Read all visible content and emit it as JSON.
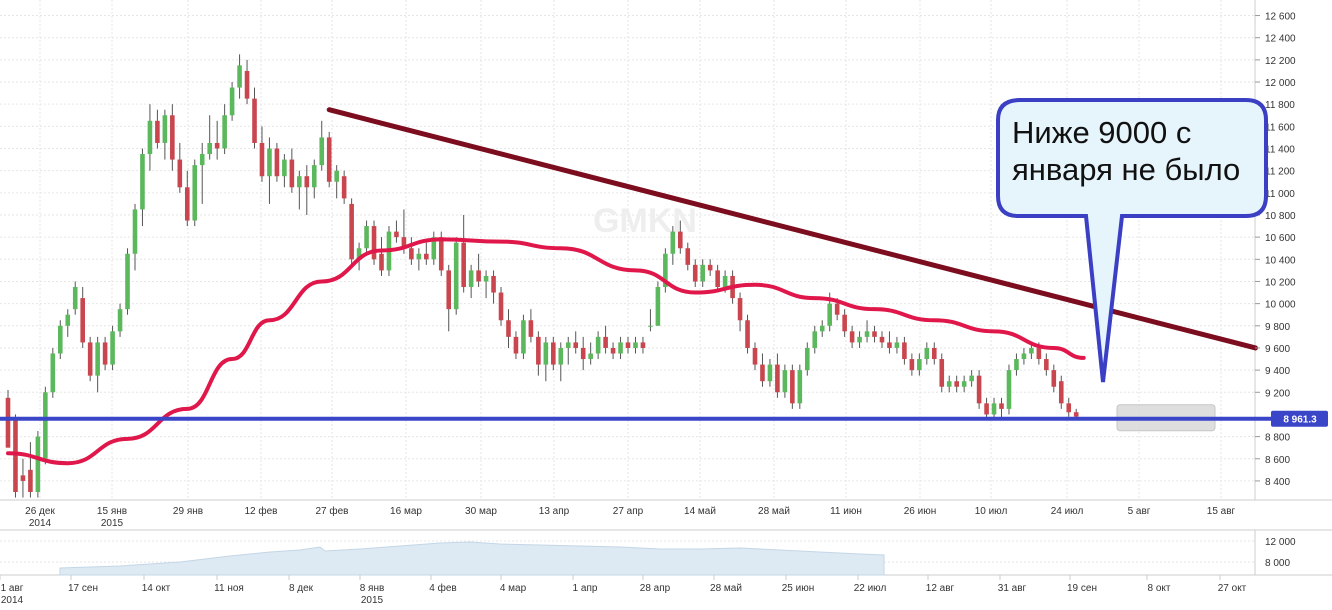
{
  "chart_data": {
    "type": "candlestick",
    "watermark": "GMKN",
    "price_axis": {
      "ticks": [
        "12 600",
        "12 400",
        "12 200",
        "12 000",
        "11 800",
        "11 600",
        "11 400",
        "11 200",
        "11 000",
        "10 800",
        "10 600",
        "10 400",
        "10 200",
        "10 000",
        "9 800",
        "9 600",
        "9 400",
        "9 200",
        "8 800",
        "8 600",
        "8 400"
      ],
      "range": [
        8300,
        12650
      ]
    },
    "current_price": {
      "label": "8 961.3",
      "value": 8961.3
    },
    "date_axis": {
      "ticks": [
        {
          "line1": "26 дек",
          "line2": "2014"
        },
        {
          "line1": "15 янв",
          "line2": "2015"
        },
        {
          "line1": "29 янв",
          "line2": ""
        },
        {
          "line1": "12 фев",
          "line2": ""
        },
        {
          "line1": "27 фев",
          "line2": ""
        },
        {
          "line1": "16 мар",
          "line2": ""
        },
        {
          "line1": "30 мар",
          "line2": ""
        },
        {
          "line1": "13 апр",
          "line2": ""
        },
        {
          "line1": "27 апр",
          "line2": ""
        },
        {
          "line1": "14 май",
          "line2": ""
        },
        {
          "line1": "28 май",
          "line2": ""
        },
        {
          "line1": "11 июн",
          "line2": ""
        },
        {
          "line1": "26 июн",
          "line2": ""
        },
        {
          "line1": "10 июл",
          "line2": ""
        },
        {
          "line1": "24 июл",
          "line2": ""
        },
        {
          "line1": "5 авг",
          "line2": ""
        },
        {
          "line1": "15 авг",
          "line2": ""
        }
      ]
    },
    "candles": [
      {
        "o": 9150,
        "h": 9220,
        "l": 8700,
        "c": 8700
      },
      {
        "o": 8950,
        "h": 9000,
        "l": 8250,
        "c": 8300
      },
      {
        "o": 8450,
        "h": 8600,
        "l": 8250,
        "c": 8400
      },
      {
        "o": 8500,
        "h": 8750,
        "l": 8250,
        "c": 8300
      },
      {
        "o": 8300,
        "h": 8850,
        "l": 8250,
        "c": 8800
      },
      {
        "o": 8600,
        "h": 9250,
        "l": 8550,
        "c": 9200
      },
      {
        "o": 9200,
        "h": 9600,
        "l": 9150,
        "c": 9550
      },
      {
        "o": 9550,
        "h": 9850,
        "l": 9500,
        "c": 9800
      },
      {
        "o": 9800,
        "h": 9950,
        "l": 9700,
        "c": 9900
      },
      {
        "o": 9950,
        "h": 10200,
        "l": 9900,
        "c": 10150
      },
      {
        "o": 10050,
        "h": 10150,
        "l": 9600,
        "c": 9650
      },
      {
        "o": 9650,
        "h": 9700,
        "l": 9300,
        "c": 9350
      },
      {
        "o": 9350,
        "h": 9700,
        "l": 9200,
        "c": 9650
      },
      {
        "o": 9650,
        "h": 9700,
        "l": 9400,
        "c": 9450
      },
      {
        "o": 9450,
        "h": 9800,
        "l": 9400,
        "c": 9750
      },
      {
        "o": 9750,
        "h": 10000,
        "l": 9700,
        "c": 9950
      },
      {
        "o": 9950,
        "h": 10500,
        "l": 9900,
        "c": 10450
      },
      {
        "o": 10450,
        "h": 10900,
        "l": 10300,
        "c": 10850
      },
      {
        "o": 10850,
        "h": 11400,
        "l": 10700,
        "c": 11350
      },
      {
        "o": 11350,
        "h": 11800,
        "l": 11200,
        "c": 11650
      },
      {
        "o": 11650,
        "h": 11750,
        "l": 11400,
        "c": 11450
      },
      {
        "o": 11450,
        "h": 11750,
        "l": 11300,
        "c": 11700
      },
      {
        "o": 11700,
        "h": 11800,
        "l": 11200,
        "c": 11300
      },
      {
        "o": 11300,
        "h": 11450,
        "l": 11000,
        "c": 11050
      },
      {
        "o": 11050,
        "h": 11200,
        "l": 10700,
        "c": 10750
      },
      {
        "o": 10750,
        "h": 11300,
        "l": 10700,
        "c": 11250
      },
      {
        "o": 11250,
        "h": 11450,
        "l": 10900,
        "c": 11350
      },
      {
        "o": 11350,
        "h": 11700,
        "l": 11300,
        "c": 11450
      },
      {
        "o": 11450,
        "h": 11650,
        "l": 11300,
        "c": 11400
      },
      {
        "o": 11400,
        "h": 11800,
        "l": 11350,
        "c": 11700
      },
      {
        "o": 11700,
        "h": 12000,
        "l": 11650,
        "c": 11950
      },
      {
        "o": 11950,
        "h": 12250,
        "l": 11850,
        "c": 12150
      },
      {
        "o": 12100,
        "h": 12200,
        "l": 11800,
        "c": 11850
      },
      {
        "o": 11850,
        "h": 11950,
        "l": 11400,
        "c": 11450
      },
      {
        "o": 11450,
        "h": 11600,
        "l": 11100,
        "c": 11150
      },
      {
        "o": 11150,
        "h": 11500,
        "l": 10900,
        "c": 11400
      },
      {
        "o": 11400,
        "h": 11450,
        "l": 11100,
        "c": 11150
      },
      {
        "o": 11150,
        "h": 11350,
        "l": 11050,
        "c": 11300
      },
      {
        "o": 11300,
        "h": 11400,
        "l": 11000,
        "c": 11050
      },
      {
        "o": 11050,
        "h": 11200,
        "l": 10850,
        "c": 11150
      },
      {
        "o": 11150,
        "h": 11250,
        "l": 10800,
        "c": 11050
      },
      {
        "o": 11050,
        "h": 11300,
        "l": 10950,
        "c": 11250
      },
      {
        "o": 11250,
        "h": 11650,
        "l": 11200,
        "c": 11500
      },
      {
        "o": 11500,
        "h": 11550,
        "l": 11050,
        "c": 11100
      },
      {
        "o": 11100,
        "h": 11250,
        "l": 10950,
        "c": 11200
      },
      {
        "o": 11150,
        "h": 11200,
        "l": 10900,
        "c": 10950
      },
      {
        "o": 10900,
        "h": 10950,
        "l": 10350,
        "c": 10400
      },
      {
        "o": 10400,
        "h": 10550,
        "l": 10300,
        "c": 10500
      },
      {
        "o": 10500,
        "h": 10750,
        "l": 10450,
        "c": 10700
      },
      {
        "o": 10700,
        "h": 10750,
        "l": 10350,
        "c": 10400
      },
      {
        "o": 10450,
        "h": 10600,
        "l": 10250,
        "c": 10300
      },
      {
        "o": 10300,
        "h": 10700,
        "l": 10250,
        "c": 10650
      },
      {
        "o": 10650,
        "h": 10750,
        "l": 10550,
        "c": 10600
      },
      {
        "o": 10600,
        "h": 10850,
        "l": 10450,
        "c": 10500
      },
      {
        "o": 10500,
        "h": 10600,
        "l": 10350,
        "c": 10400
      },
      {
        "o": 10400,
        "h": 10500,
        "l": 10300,
        "c": 10450
      },
      {
        "o": 10450,
        "h": 10550,
        "l": 10350,
        "c": 10400
      },
      {
        "o": 10400,
        "h": 10650,
        "l": 10350,
        "c": 10600
      },
      {
        "o": 10600,
        "h": 10650,
        "l": 10250,
        "c": 10300
      },
      {
        "o": 10300,
        "h": 10350,
        "l": 9750,
        "c": 9950
      },
      {
        "o": 9950,
        "h": 10600,
        "l": 9900,
        "c": 10550
      },
      {
        "o": 10550,
        "h": 10800,
        "l": 10100,
        "c": 10150
      },
      {
        "o": 10150,
        "h": 10350,
        "l": 10050,
        "c": 10300
      },
      {
        "o": 10300,
        "h": 10450,
        "l": 10150,
        "c": 10200
      },
      {
        "o": 10200,
        "h": 10300,
        "l": 10050,
        "c": 10250
      },
      {
        "o": 10250,
        "h": 10300,
        "l": 10000,
        "c": 10100
      },
      {
        "o": 10100,
        "h": 10150,
        "l": 9800,
        "c": 9850
      },
      {
        "o": 9850,
        "h": 9950,
        "l": 9600,
        "c": 9700
      },
      {
        "o": 9700,
        "h": 9750,
        "l": 9500,
        "c": 9550
      },
      {
        "o": 9550,
        "h": 9900,
        "l": 9500,
        "c": 9850
      },
      {
        "o": 9850,
        "h": 9950,
        "l": 9650,
        "c": 9700
      },
      {
        "o": 9700,
        "h": 9750,
        "l": 9350,
        "c": 9450
      },
      {
        "o": 9450,
        "h": 9700,
        "l": 9300,
        "c": 9650
      },
      {
        "o": 9650,
        "h": 9700,
        "l": 9400,
        "c": 9450
      },
      {
        "o": 9450,
        "h": 9650,
        "l": 9300,
        "c": 9600
      },
      {
        "o": 9600,
        "h": 9700,
        "l": 9450,
        "c": 9650
      },
      {
        "o": 9650,
        "h": 9750,
        "l": 9550,
        "c": 9600
      },
      {
        "o": 9600,
        "h": 9700,
        "l": 9400,
        "c": 9500
      },
      {
        "o": 9500,
        "h": 9650,
        "l": 9450,
        "c": 9550
      },
      {
        "o": 9550,
        "h": 9750,
        "l": 9500,
        "c": 9700
      },
      {
        "o": 9700,
        "h": 9800,
        "l": 9550,
        "c": 9600
      },
      {
        "o": 9600,
        "h": 9650,
        "l": 9500,
        "c": 9550
      },
      {
        "o": 9550,
        "h": 9700,
        "l": 9500,
        "c": 9650
      },
      {
        "o": 9650,
        "h": 9700,
        "l": 9550,
        "c": 9600
      },
      {
        "o": 9600,
        "h": 9700,
        "l": 9550,
        "c": 9650
      },
      {
        "o": 9650,
        "h": 9700,
        "l": 9550,
        "c": 9600
      },
      {
        "o": 9800,
        "h": 9950,
        "l": 9750,
        "c": 9800
      },
      {
        "o": 9800,
        "h": 10200,
        "l": 9800,
        "c": 10150
      },
      {
        "o": 10150,
        "h": 10500,
        "l": 10100,
        "c": 10450
      },
      {
        "o": 10450,
        "h": 10700,
        "l": 10350,
        "c": 10650
      },
      {
        "o": 10650,
        "h": 10750,
        "l": 10450,
        "c": 10500
      },
      {
        "o": 10500,
        "h": 10550,
        "l": 10300,
        "c": 10350
      },
      {
        "o": 10350,
        "h": 10400,
        "l": 10150,
        "c": 10200
      },
      {
        "o": 10200,
        "h": 10400,
        "l": 10150,
        "c": 10350
      },
      {
        "o": 10350,
        "h": 10400,
        "l": 10250,
        "c": 10300
      },
      {
        "o": 10300,
        "h": 10350,
        "l": 10100,
        "c": 10150
      },
      {
        "o": 10150,
        "h": 10300,
        "l": 10100,
        "c": 10250
      },
      {
        "o": 10250,
        "h": 10300,
        "l": 10000,
        "c": 10050
      },
      {
        "o": 10050,
        "h": 10100,
        "l": 9750,
        "c": 9850
      },
      {
        "o": 9850,
        "h": 9900,
        "l": 9550,
        "c": 9600
      },
      {
        "o": 9600,
        "h": 9650,
        "l": 9400,
        "c": 9450
      },
      {
        "o": 9450,
        "h": 9550,
        "l": 9250,
        "c": 9300
      },
      {
        "o": 9300,
        "h": 9500,
        "l": 9250,
        "c": 9450
      },
      {
        "o": 9450,
        "h": 9550,
        "l": 9150,
        "c": 9200
      },
      {
        "o": 9200,
        "h": 9450,
        "l": 9150,
        "c": 9400
      },
      {
        "o": 9400,
        "h": 9450,
        "l": 9050,
        "c": 9100
      },
      {
        "o": 9100,
        "h": 9450,
        "l": 9050,
        "c": 9400
      },
      {
        "o": 9400,
        "h": 9650,
        "l": 9350,
        "c": 9600
      },
      {
        "o": 9600,
        "h": 9800,
        "l": 9550,
        "c": 9750
      },
      {
        "o": 9750,
        "h": 9850,
        "l": 9700,
        "c": 9800
      },
      {
        "o": 9800,
        "h": 10100,
        "l": 9750,
        "c": 10000
      },
      {
        "o": 10000,
        "h": 10050,
        "l": 9850,
        "c": 9900
      },
      {
        "o": 9900,
        "h": 9950,
        "l": 9700,
        "c": 9750
      },
      {
        "o": 9750,
        "h": 9800,
        "l": 9600,
        "c": 9650
      },
      {
        "o": 9650,
        "h": 9750,
        "l": 9600,
        "c": 9700
      },
      {
        "o": 9700,
        "h": 9850,
        "l": 9650,
        "c": 9750
      },
      {
        "o": 9750,
        "h": 9800,
        "l": 9650,
        "c": 9700
      },
      {
        "o": 9700,
        "h": 9750,
        "l": 9600,
        "c": 9650
      },
      {
        "o": 9650,
        "h": 9750,
        "l": 9550,
        "c": 9600
      },
      {
        "o": 9600,
        "h": 9700,
        "l": 9550,
        "c": 9650
      },
      {
        "o": 9650,
        "h": 9700,
        "l": 9450,
        "c": 9500
      },
      {
        "o": 9500,
        "h": 9550,
        "l": 9350,
        "c": 9400
      },
      {
        "o": 9400,
        "h": 9550,
        "l": 9350,
        "c": 9500
      },
      {
        "o": 9500,
        "h": 9650,
        "l": 9450,
        "c": 9600
      },
      {
        "o": 9600,
        "h": 9650,
        "l": 9450,
        "c": 9500
      },
      {
        "o": 9500,
        "h": 9550,
        "l": 9200,
        "c": 9250
      },
      {
        "o": 9250,
        "h": 9350,
        "l": 9200,
        "c": 9300
      },
      {
        "o": 9300,
        "h": 9350,
        "l": 9200,
        "c": 9250
      },
      {
        "o": 9250,
        "h": 9350,
        "l": 9200,
        "c": 9300
      },
      {
        "o": 9300,
        "h": 9400,
        "l": 9250,
        "c": 9350
      },
      {
        "o": 9350,
        "h": 9400,
        "l": 9050,
        "c": 9100
      },
      {
        "o": 9100,
        "h": 9150,
        "l": 8950,
        "c": 9000
      },
      {
        "o": 9000,
        "h": 9150,
        "l": 8950,
        "c": 9100
      },
      {
        "o": 9100,
        "h": 9150,
        "l": 8950,
        "c": 9050
      },
      {
        "o": 9050,
        "h": 9450,
        "l": 9000,
        "c": 9400
      },
      {
        "o": 9400,
        "h": 9550,
        "l": 9350,
        "c": 9500
      },
      {
        "o": 9500,
        "h": 9600,
        "l": 9450,
        "c": 9550
      },
      {
        "o": 9550,
        "h": 9650,
        "l": 9500,
        "c": 9600
      },
      {
        "o": 9600,
        "h": 9650,
        "l": 9450,
        "c": 9500
      },
      {
        "o": 9500,
        "h": 9550,
        "l": 9350,
        "c": 9400
      },
      {
        "o": 9400,
        "h": 9450,
        "l": 9200,
        "c": 9250
      },
      {
        "o": 9300,
        "h": 9350,
        "l": 9050,
        "c": 9100
      },
      {
        "o": 9100,
        "h": 9150,
        "l": 8980,
        "c": 9020
      },
      {
        "o": 9020,
        "h": 9050,
        "l": 8960,
        "c": 8980
      }
    ],
    "moving_average": [
      [
        0,
        8650
      ],
      [
        8,
        8560
      ],
      [
        16,
        8780
      ],
      [
        24,
        9050
      ],
      [
        30,
        9500
      ],
      [
        35,
        9850
      ],
      [
        42,
        10200
      ],
      [
        50,
        10480
      ],
      [
        58,
        10580
      ],
      [
        66,
        10560
      ],
      [
        74,
        10500
      ],
      [
        84,
        10300
      ],
      [
        92,
        10100
      ],
      [
        100,
        10170
      ],
      [
        108,
        10050
      ],
      [
        116,
        9950
      ],
      [
        124,
        9850
      ],
      [
        132,
        9750
      ],
      [
        140,
        9600
      ],
      [
        144,
        9510
      ]
    ],
    "trend_line": {
      "from": [
        43,
        11750
      ],
      "to": [
        167,
        9600
      ]
    },
    "support_line": {
      "value": 8961.3
    },
    "callout": {
      "line1": "Ниже 9000 с",
      "line2": "января не было"
    },
    "navigator": {
      "ticks": [
        {
          "line1": "1 авг",
          "line2": "2014"
        },
        {
          "line1": "17 сен",
          "line2": ""
        },
        {
          "line1": "14 окт",
          "line2": ""
        },
        {
          "line1": "11 ноя",
          "line2": ""
        },
        {
          "line1": "8 дек",
          "line2": ""
        },
        {
          "line1": "8 янв",
          "line2": "2015"
        },
        {
          "line1": "4 фев",
          "line2": ""
        },
        {
          "line1": "4 мар",
          "line2": ""
        },
        {
          "line1": "1 апр",
          "line2": ""
        },
        {
          "line1": "28 апр",
          "line2": ""
        },
        {
          "line1": "28 май",
          "line2": ""
        },
        {
          "line1": "25 июн",
          "line2": ""
        },
        {
          "line1": "22 июл",
          "line2": ""
        },
        {
          "line1": "12 авг",
          "line2": ""
        },
        {
          "line1": "31 авг",
          "line2": ""
        },
        {
          "line1": "19 сен",
          "line2": ""
        },
        {
          "line1": "8 окт",
          "line2": ""
        },
        {
          "line1": "27 окт",
          "line2": ""
        }
      ],
      "price_ticks": [
        "12 000",
        "8 000"
      ]
    },
    "colors": {
      "up": "#5cb85c",
      "down": "#c9464e",
      "moving_average": "#e0174a",
      "trend_line": "#7b0d1e",
      "support_line": "#3a45c8",
      "callout_border": "#3a3fc4",
      "callout_fill": "#e6f4fc"
    }
  }
}
